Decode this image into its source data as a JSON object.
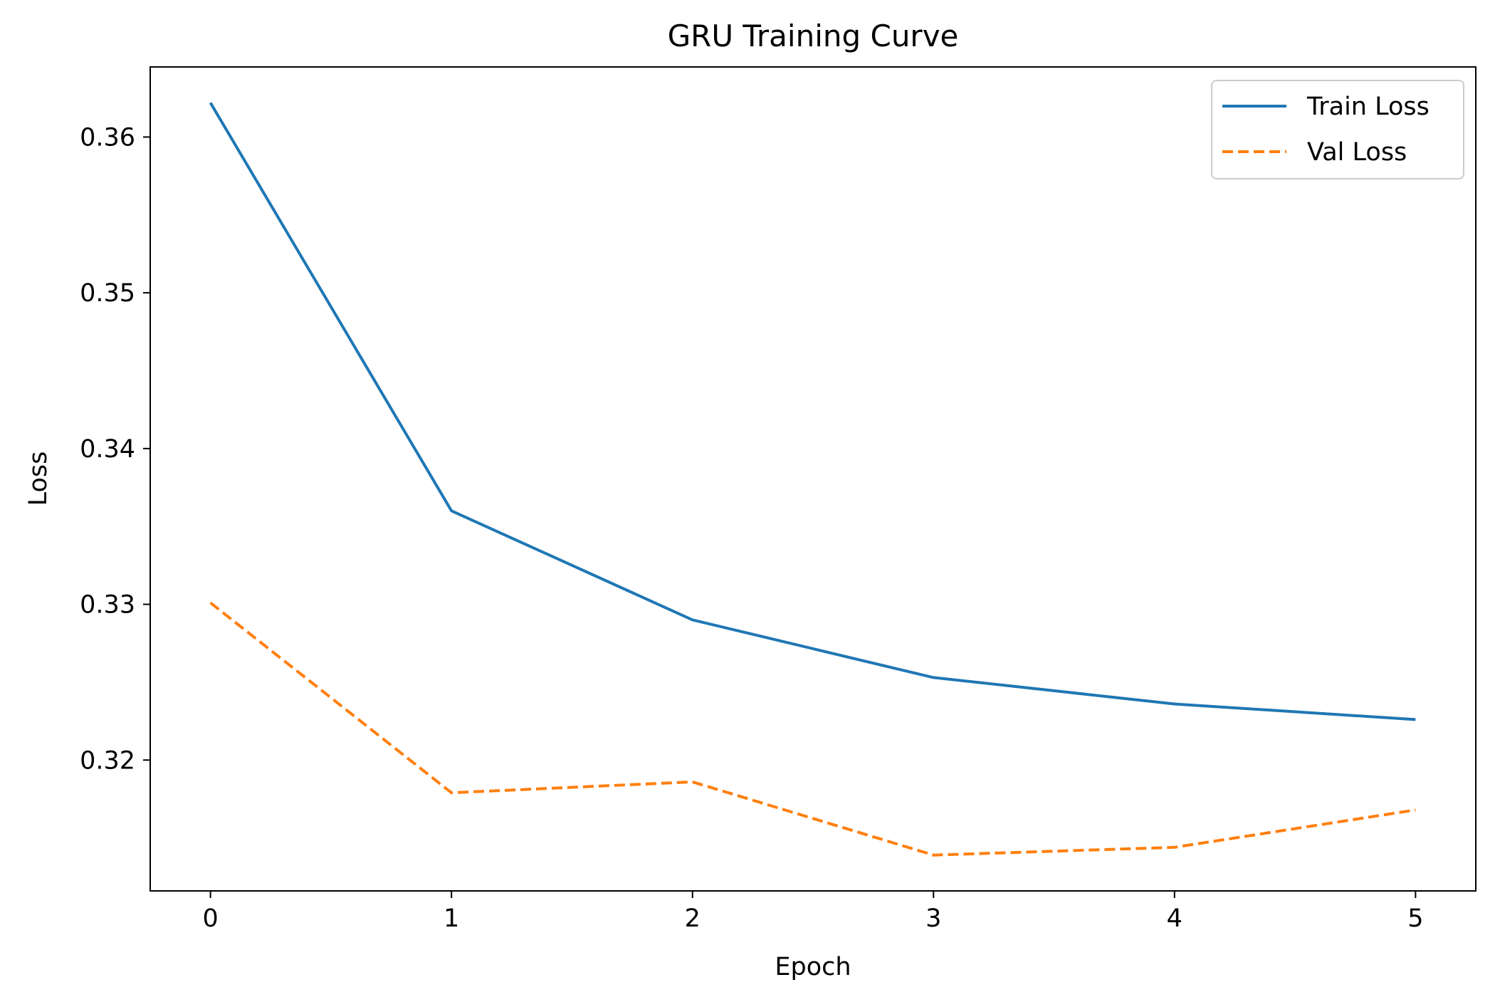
{
  "chart_data": {
    "type": "line",
    "title": "GRU Training Curve",
    "xlabel": "Epoch",
    "ylabel": "Loss",
    "x": [
      0,
      1,
      2,
      3,
      4,
      5
    ],
    "xticks": [
      0,
      1,
      2,
      3,
      4,
      5
    ],
    "yticks": [
      0.32,
      0.33,
      0.34,
      0.35,
      0.36
    ],
    "ytick_labels": [
      "0.32",
      "0.33",
      "0.34",
      "0.35",
      "0.36"
    ],
    "xlim": [
      -0.25,
      5.25
    ],
    "ylim": [
      0.3116,
      0.3645
    ],
    "grid": false,
    "legend_position": "top-right",
    "series": [
      {
        "name": "Train Loss",
        "values": [
          0.3622,
          0.336,
          0.329,
          0.3253,
          0.3236,
          0.3226
        ],
        "color": "#1f77b4",
        "style": "solid"
      },
      {
        "name": "Val Loss",
        "values": [
          0.3301,
          0.3179,
          0.3186,
          0.3139,
          0.3144,
          0.3168
        ],
        "color": "#ff7f0e",
        "style": "dashed"
      }
    ]
  }
}
